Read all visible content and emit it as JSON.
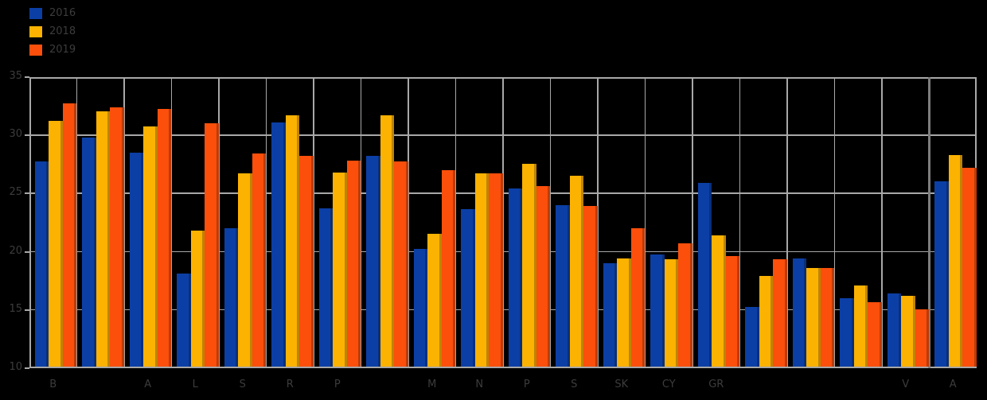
{
  "legend": {
    "items": [
      {
        "label": "2016",
        "color": "#0c3fa5"
      },
      {
        "label": "2018",
        "color": "#fcb200"
      },
      {
        "label": "2019",
        "color": "#fb4f0b"
      }
    ]
  },
  "chart_data": {
    "type": "bar",
    "title": "",
    "categories": [
      "B",
      "",
      "A",
      "L",
      "S",
      "R",
      "P",
      "",
      "M",
      "N",
      "P",
      "S",
      "SK",
      "CY",
      "GR",
      "",
      "",
      "",
      "V",
      "A"
    ],
    "series": [
      {
        "name": "2016",
        "color": "#0c3fa5",
        "values": [
          27.6,
          29.7,
          28.4,
          18.0,
          21.9,
          31.0,
          23.6,
          28.1,
          20.1,
          23.5,
          25.3,
          23.9,
          18.9,
          19.6,
          25.8,
          15.1,
          19.3,
          15.9,
          16.3,
          25.9
        ]
      },
      {
        "name": "2018",
        "color": "#fcb200",
        "values": [
          31.1,
          31.9,
          30.6,
          21.7,
          26.6,
          31.6,
          26.7,
          31.6,
          21.4,
          26.6,
          27.4,
          26.4,
          19.3,
          19.2,
          21.3,
          17.8,
          18.5,
          17.0,
          16.1,
          28.2
        ]
      },
      {
        "name": "2019",
        "color": "#fb4f0b",
        "values": [
          32.6,
          32.3,
          32.1,
          30.9,
          28.3,
          28.1,
          27.7,
          27.6,
          26.9,
          26.6,
          25.5,
          23.8,
          21.9,
          20.6,
          19.5,
          19.2,
          18.5,
          15.5,
          14.9,
          27.1
        ]
      }
    ],
    "xlabel": "",
    "ylabel": "",
    "ylim": [
      10,
      35
    ],
    "yticks": [
      10,
      15,
      20,
      25,
      30,
      35
    ],
    "grid": true,
    "legend_position": "top-left",
    "separator_before_last_group": true,
    "colors": {
      "background": "#000000",
      "gridline": "#a8a8a8",
      "separator": "#7d7d7d",
      "text": "#3c3c3c"
    }
  }
}
